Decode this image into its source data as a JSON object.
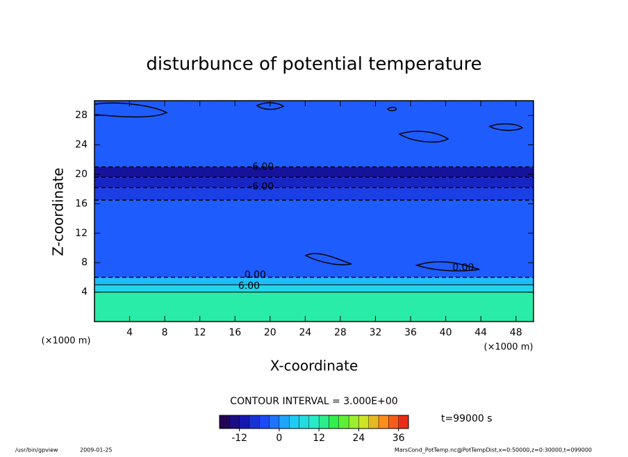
{
  "chart_data": {
    "type": "contour",
    "title": "disturbunce of potential temperature",
    "xlabel": "X-coordinate",
    "ylabel": "Z-coordinate",
    "x_unit": "(×1000 m)",
    "y_unit": "(×1000 m)",
    "xlim": [
      0,
      50
    ],
    "xticks": [
      4,
      8,
      12,
      16,
      20,
      24,
      28,
      32,
      36,
      40,
      44,
      48
    ],
    "ylim": [
      0,
      30
    ],
    "yticks": [
      4,
      8,
      12,
      16,
      20,
      24,
      28
    ],
    "ybins": [
      0,
      4,
      5,
      6,
      16.5,
      18.2,
      19.6,
      21,
      30
    ],
    "values": [
      12,
      6,
      3,
      -3,
      -6,
      -9,
      -12,
      -3
    ],
    "contour_labels": [
      {
        "value": -6,
        "label": "-6.00",
        "x": 19,
        "y": 21
      },
      {
        "value": -6,
        "label": "-6.00",
        "x": 19,
        "y": 18.3
      },
      {
        "value": 0,
        "label": "0.00",
        "x": 18.3,
        "y": 6.3
      },
      {
        "value": 6,
        "label": "6.00",
        "x": 17.6,
        "y": 4.8
      },
      {
        "value": 0,
        "label": "0.00",
        "x": 42,
        "y": 7.3
      }
    ],
    "contour_interval": "CONTOUR INTERVAL = 3.000E+00",
    "colorbar_lim": [
      -18,
      39
    ],
    "colorbar_step": 3,
    "colorbar_ticks": [
      -12,
      0,
      12,
      24,
      36
    ],
    "time_label": "t=99000 s",
    "footer_left": "/usr/bin/gpview",
    "footer_date": "2009-01-25",
    "footer_right": "MarsCond_PotTemp.nc@PotTempDist,x=0:50000,z=0:30000,t=099000"
  }
}
